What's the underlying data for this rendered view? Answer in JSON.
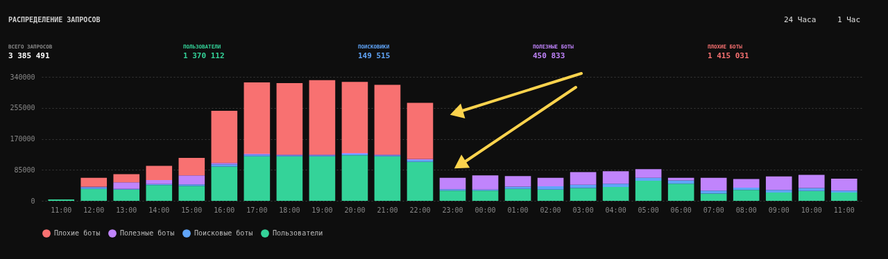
{
  "chart_data": {
    "type": "bar",
    "title": "РАСПРЕДЕЛЕНИЕ ЗАПРОСОВ",
    "annotations": [
      "ВСЕГО ЗАПРОСОВ",
      "3 385 491",
      "ПОЛЬЗОВАТЕЛИ",
      "1 370 112",
      "ПОИСКОВИКИ",
      "149 515",
      "ПОЛЕЗНЫЕ БОТЫ",
      "450 833",
      "ПЛОХИЕ БОТЫ",
      "1 415 031",
      "24 Часа",
      "1 Час"
    ],
    "categories": [
      "11:00",
      "12:00",
      "13:00",
      "14:00",
      "15:00",
      "16:00",
      "17:00",
      "18:00",
      "19:00",
      "20:00",
      "21:00",
      "22:00",
      "23:00",
      "00:00",
      "01:00",
      "02:00",
      "03:00",
      "04:00",
      "05:00",
      "06:00",
      "07:00",
      "08:00",
      "09:00",
      "10:00",
      "11:00"
    ],
    "stacked": true,
    "series": [
      {
        "name": "Пользователи",
        "color": "#34d399",
        "values": [
          4000,
          33000,
          31000,
          43000,
          41000,
          94000,
          122000,
          122000,
          122000,
          125000,
          122000,
          107000,
          28000,
          28000,
          33000,
          31000,
          35000,
          38000,
          55000,
          47000,
          20000,
          30000,
          23000,
          27000,
          23000
        ]
      },
      {
        "name": "Поисковые боты",
        "color": "#60a5fa",
        "values": [
          0,
          4000,
          2000,
          3000,
          4000,
          6000,
          5000,
          3000,
          3000,
          4000,
          3000,
          5000,
          4000,
          3000,
          6000,
          9000,
          9000,
          9000,
          8000,
          9000,
          8000,
          6000,
          7000,
          8000,
          5000
        ]
      },
      {
        "name": "Полезные боты",
        "color": "#c084fc",
        "values": [
          0,
          2000,
          18000,
          11000,
          25000,
          4000,
          2000,
          2000,
          2000,
          2000,
          2000,
          3000,
          31000,
          39000,
          29000,
          23000,
          35000,
          34000,
          24000,
          7000,
          35000,
          24000,
          37000,
          36000,
          33000
        ]
      },
      {
        "name": "Плохие боты",
        "color": "#f87171",
        "values": [
          0,
          24000,
          22000,
          39000,
          48000,
          143000,
          196000,
          196000,
          204000,
          195000,
          191000,
          154000,
          0,
          0,
          0,
          0,
          0,
          0,
          0,
          0,
          0,
          0,
          0,
          0,
          0
        ]
      }
    ],
    "ylim": [
      0,
      340000
    ],
    "yticks": [
      0,
      85000,
      170000,
      255000,
      340000
    ],
    "grid": "y",
    "legend": "bottom"
  }
}
